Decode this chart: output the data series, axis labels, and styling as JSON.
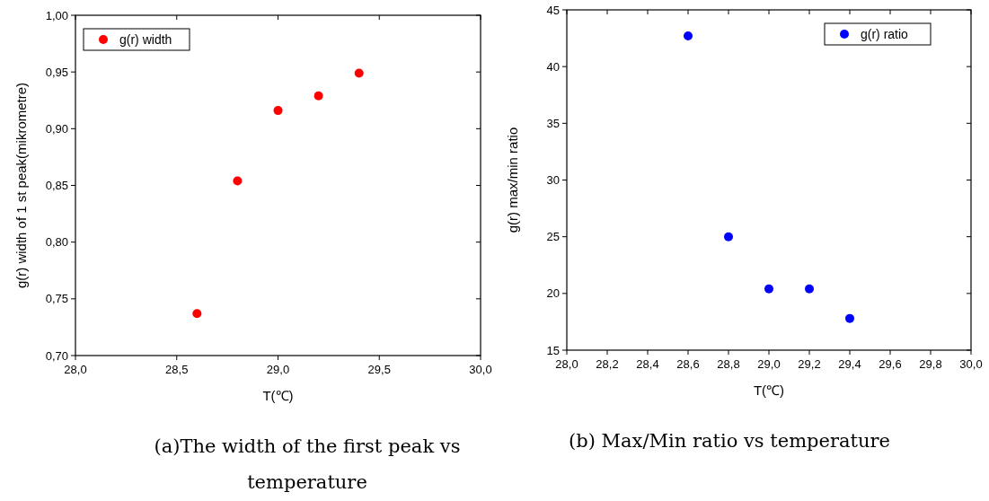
{
  "chart_data": [
    {
      "type": "scatter",
      "xlabel": "T(℃)",
      "ylabel": "g(r) width of 1 st peak(mikrometre)",
      "x": [
        28.6,
        28.8,
        29.0,
        29.2,
        29.4
      ],
      "series": [
        {
          "name": "g(r) width",
          "color": "#ff0000",
          "values": [
            0.737,
            0.854,
            0.916,
            0.929,
            0.949
          ]
        }
      ],
      "xlim": [
        28.0,
        30.0
      ],
      "xticks": [
        {
          "value": 28.0,
          "label": "28,0"
        },
        {
          "value": 28.5,
          "label": "28,5"
        },
        {
          "value": 29.0,
          "label": "29,0"
        },
        {
          "value": 29.5,
          "label": "29,5"
        },
        {
          "value": 30.0,
          "label": "30,0"
        }
      ],
      "ylim": [
        0.7,
        1.0
      ],
      "yticks": [
        {
          "value": 0.7,
          "label": "0,70"
        },
        {
          "value": 0.75,
          "label": "0,75"
        },
        {
          "value": 0.8,
          "label": "0,80"
        },
        {
          "value": 0.85,
          "label": "0,85"
        },
        {
          "value": 0.9,
          "label": "0,90"
        },
        {
          "value": 0.95,
          "label": "0,95"
        },
        {
          "value": 1.0,
          "label": "1,00"
        }
      ],
      "legend": "top left",
      "marker": "circle",
      "grid": false,
      "annotations": [
        "(a)The width of the first peak vs temperature"
      ]
    },
    {
      "type": "scatter",
      "xlabel": "T(℃)",
      "ylabel": "g(r) max/min ratio",
      "x": [
        28.6,
        28.8,
        29.0,
        29.2,
        29.4
      ],
      "series": [
        {
          "name": "g(r) ratio",
          "color": "#0000ff",
          "values": [
            42.7,
            25.0,
            20.4,
            20.4,
            17.8
          ]
        }
      ],
      "xlim": [
        28.0,
        30.0
      ],
      "xticks": [
        {
          "value": 28.0,
          "label": "28,0"
        },
        {
          "value": 28.2,
          "label": "28,2"
        },
        {
          "value": 28.4,
          "label": "28,4"
        },
        {
          "value": 28.6,
          "label": "28,6"
        },
        {
          "value": 28.8,
          "label": "28,8"
        },
        {
          "value": 29.0,
          "label": "29,0"
        },
        {
          "value": 29.2,
          "label": "29,2"
        },
        {
          "value": 29.4,
          "label": "29,4"
        },
        {
          "value": 29.6,
          "label": "29,6"
        },
        {
          "value": 29.8,
          "label": "29,8"
        },
        {
          "value": 30.0,
          "label": "30,0"
        }
      ],
      "ylim": [
        15,
        45
      ],
      "yticks": [
        15,
        20,
        25,
        30,
        35,
        40,
        45
      ],
      "legend": "top right",
      "marker": "circle",
      "grid": false,
      "annotations": [
        "(b) Max/Min ratio vs temperature"
      ]
    }
  ]
}
